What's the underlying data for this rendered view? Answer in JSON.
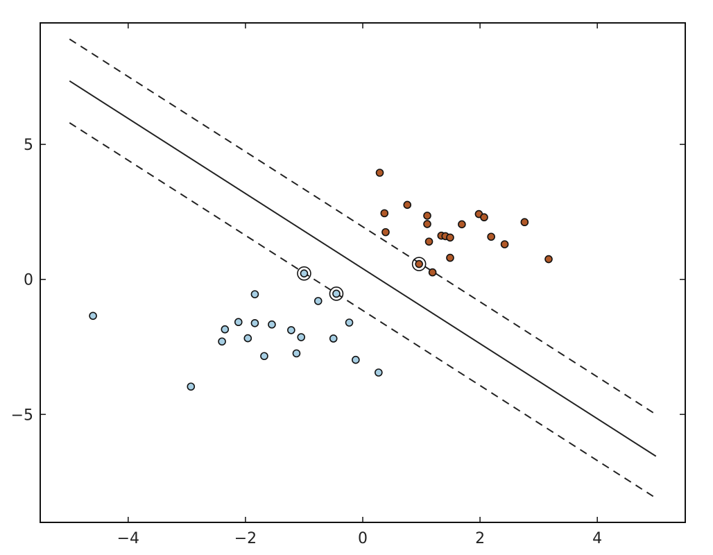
{
  "chart_data": {
    "type": "scatter",
    "title": "",
    "xlabel": "",
    "ylabel": "",
    "xlim": [
      -5.5,
      5.5
    ],
    "ylim": [
      -9,
      9.5
    ],
    "grid": false,
    "xticks": [
      -4,
      -2,
      0,
      2,
      4
    ],
    "xtick_labels": [
      "−4",
      "−2",
      "0",
      "2",
      "4"
    ],
    "yticks": [
      -5,
      0,
      5
    ],
    "ytick_labels": [
      "−5",
      "0",
      "5"
    ],
    "series": [
      {
        "color": "#a6cee3",
        "points": [
          [
            -4.6,
            -1.35
          ],
          [
            -2.93,
            -3.97
          ],
          [
            -2.4,
            -2.3
          ],
          [
            -2.35,
            -1.85
          ],
          [
            -2.12,
            -1.58
          ],
          [
            -1.96,
            -2.18
          ],
          [
            -1.84,
            -0.55
          ],
          [
            -1.84,
            -1.62
          ],
          [
            -1.68,
            -2.84
          ],
          [
            -1.55,
            -1.67
          ],
          [
            -1.22,
            -1.88
          ],
          [
            -1.13,
            -2.74
          ],
          [
            -1.05,
            -2.14
          ],
          [
            -1.0,
            0.22
          ],
          [
            -0.76,
            -0.8
          ],
          [
            -0.5,
            -2.19
          ],
          [
            -0.45,
            -0.53
          ],
          [
            -0.23,
            -1.6
          ],
          [
            -0.12,
            -2.98
          ],
          [
            0.27,
            -3.45
          ]
        ]
      },
      {
        "color": "#b15928",
        "points": [
          [
            0.29,
            3.95
          ],
          [
            0.37,
            2.45
          ],
          [
            0.39,
            1.75
          ],
          [
            0.76,
            2.76
          ],
          [
            0.96,
            0.57
          ],
          [
            1.1,
            2.36
          ],
          [
            1.1,
            2.05
          ],
          [
            1.13,
            1.4
          ],
          [
            1.19,
            0.26
          ],
          [
            1.34,
            1.62
          ],
          [
            1.41,
            1.6
          ],
          [
            1.49,
            1.55
          ],
          [
            1.49,
            0.8
          ],
          [
            1.69,
            2.04
          ],
          [
            1.98,
            2.42
          ],
          [
            2.07,
            2.3
          ],
          [
            2.19,
            1.58
          ],
          [
            2.42,
            1.3
          ],
          [
            2.76,
            2.12
          ],
          [
            3.17,
            0.75
          ]
        ]
      }
    ],
    "support_vectors": [
      [
        -1.0,
        0.22
      ],
      [
        -0.45,
        -0.53
      ],
      [
        0.96,
        0.57
      ]
    ],
    "lines": [
      {
        "style": "solid",
        "x": [
          -5,
          5
        ],
        "y": [
          7.35,
          -6.55
        ]
      },
      {
        "style": "dashed",
        "x": [
          -5,
          5
        ],
        "y": [
          8.9,
          -5.0
        ]
      },
      {
        "style": "dashed",
        "x": [
          -5,
          5
        ],
        "y": [
          5.8,
          -8.1
        ]
      }
    ]
  }
}
